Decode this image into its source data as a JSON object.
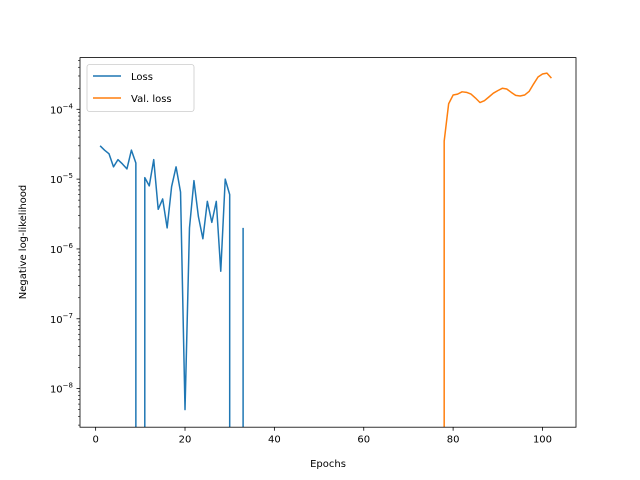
{
  "chart_data": {
    "type": "line",
    "title": "",
    "xlabel": "Epochs",
    "ylabel": "Negative log-likelihood",
    "xlim": [
      -3.5,
      107.5
    ],
    "ylim": [
      2.8e-09,
      0.00055
    ],
    "yscale": "log",
    "grid": false,
    "legend_position": "top-left",
    "xticks": [
      0,
      20,
      40,
      60,
      80,
      100
    ],
    "xtick_labels": [
      "0",
      "20",
      "40",
      "60",
      "80",
      "100"
    ],
    "yticks": [
      1e-08,
      1e-07,
      1e-06,
      1e-05,
      0.0001
    ],
    "ytick_labels": [
      {
        "base": "10",
        "exp": "−8"
      },
      {
        "base": "10",
        "exp": "−7"
      },
      {
        "base": "10",
        "exp": "−6"
      },
      {
        "base": "10",
        "exp": "−5"
      },
      {
        "base": "10",
        "exp": "−4"
      }
    ],
    "series": [
      {
        "name": "Loss",
        "color": "#1f77b4",
        "points": [
          [
            1,
            3e-05
          ],
          [
            2,
            2.6e-05
          ],
          [
            3,
            2.3e-05
          ],
          [
            4,
            1.5e-05
          ],
          [
            5,
            1.9e-05
          ],
          [
            6,
            1.65e-05
          ],
          [
            7,
            1.4e-05
          ],
          [
            8,
            2.6e-05
          ],
          [
            9,
            1.7e-05
          ],
          [
            9,
            null
          ],
          [
            11,
            null
          ],
          [
            11,
            1.05e-05
          ],
          [
            12,
            8e-06
          ],
          [
            13,
            1.9e-05
          ],
          [
            14,
            3.7e-06
          ],
          [
            15,
            5.2e-06
          ],
          [
            16,
            2e-06
          ],
          [
            17,
            7.8e-06
          ],
          [
            18,
            1.5e-05
          ],
          [
            19,
            6.5e-06
          ],
          [
            20,
            5e-09
          ],
          [
            21,
            2e-06
          ],
          [
            22,
            9.5e-06
          ],
          [
            23,
            2.9e-06
          ],
          [
            24,
            1.4e-06
          ],
          [
            25,
            4.8e-06
          ],
          [
            26,
            2.4e-06
          ],
          [
            27,
            4.8e-06
          ],
          [
            28,
            4.8e-07
          ],
          [
            29,
            1e-05
          ],
          [
            30,
            6e-06
          ],
          [
            30,
            null
          ],
          [
            33,
            null
          ],
          [
            33,
            2e-06
          ]
        ]
      },
      {
        "name": "Val. loss",
        "color": "#ff7f0e",
        "points": [
          [
            78,
            null
          ],
          [
            78,
            3.5e-05
          ],
          [
            79,
            0.00012
          ],
          [
            80,
            0.00016
          ],
          [
            81,
            0.000165
          ],
          [
            82,
            0.000178
          ],
          [
            83,
            0.000175
          ],
          [
            84,
            0.000165
          ],
          [
            85,
            0.000145
          ],
          [
            86,
            0.000125
          ],
          [
            87,
            0.000133
          ],
          [
            88,
            0.00015
          ],
          [
            89,
            0.00017
          ],
          [
            90,
            0.000185
          ],
          [
            91,
            0.0002
          ],
          [
            92,
            0.000195
          ],
          [
            93,
            0.000175
          ],
          [
            94,
            0.000158
          ],
          [
            95,
            0.000155
          ],
          [
            96,
            0.00016
          ],
          [
            97,
            0.00018
          ],
          [
            98,
            0.00023
          ],
          [
            99,
            0.00029
          ],
          [
            100,
            0.00032
          ],
          [
            101,
            0.00033
          ],
          [
            102,
            0.00028
          ]
        ]
      }
    ]
  }
}
